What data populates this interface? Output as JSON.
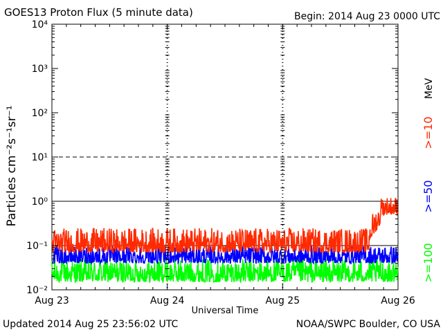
{
  "header": {
    "title": "GOES13 Proton Flux (5 minute data)",
    "begin": "Begin: 2014 Aug 23 0000 UTC"
  },
  "footer": {
    "updated": "Updated 2014 Aug 25 23:56:02 UTC",
    "credit": "NOAA/SWPC Boulder, CO USA"
  },
  "chart_data": {
    "type": "line",
    "title": "GOES13 Proton Flux (5 minute data)",
    "xlabel": "Universal Time",
    "ylabel": "Particles cm⁻²s⁻¹sr⁻¹",
    "yscale": "log",
    "ylim": [
      0.01,
      10000
    ],
    "ytick_labels": [
      "10⁻²",
      "10⁻¹",
      "10⁰",
      "10¹",
      "10²",
      "10³",
      "10⁴"
    ],
    "xlim_days": [
      0,
      3
    ],
    "xtick_labels": [
      "Aug 23",
      "Aug 24",
      "Aug 25",
      "Aug 26"
    ],
    "threshold_lines": [
      {
        "value": 10,
        "style": "dashed"
      },
      {
        "value": 1,
        "style": "solid"
      },
      {
        "value": 0.1,
        "style": "solid"
      }
    ],
    "unit_label": "MeV",
    "grid": "major decades solid, day markers dashed",
    "series": [
      {
        "name": ">=10",
        "color": "#ff2a00",
        "segments": [
          {
            "from_day": 0.0,
            "to_day": 2.75,
            "min": 0.07,
            "max": 0.25
          },
          {
            "from_day": 2.75,
            "to_day": 2.85,
            "min": 0.12,
            "max": 0.45
          },
          {
            "from_day": 2.85,
            "to_day": 3.0,
            "min": 0.5,
            "max": 1.3
          }
        ]
      },
      {
        "name": ">=50",
        "color": "#0000ff",
        "segments": [
          {
            "from_day": 0.0,
            "to_day": 3.0,
            "min": 0.04,
            "max": 0.1
          }
        ]
      },
      {
        "name": ">=100",
        "color": "#00ff00",
        "segments": [
          {
            "from_day": 0.0,
            "to_day": 3.0,
            "min": 0.015,
            "max": 0.05
          }
        ]
      }
    ]
  }
}
